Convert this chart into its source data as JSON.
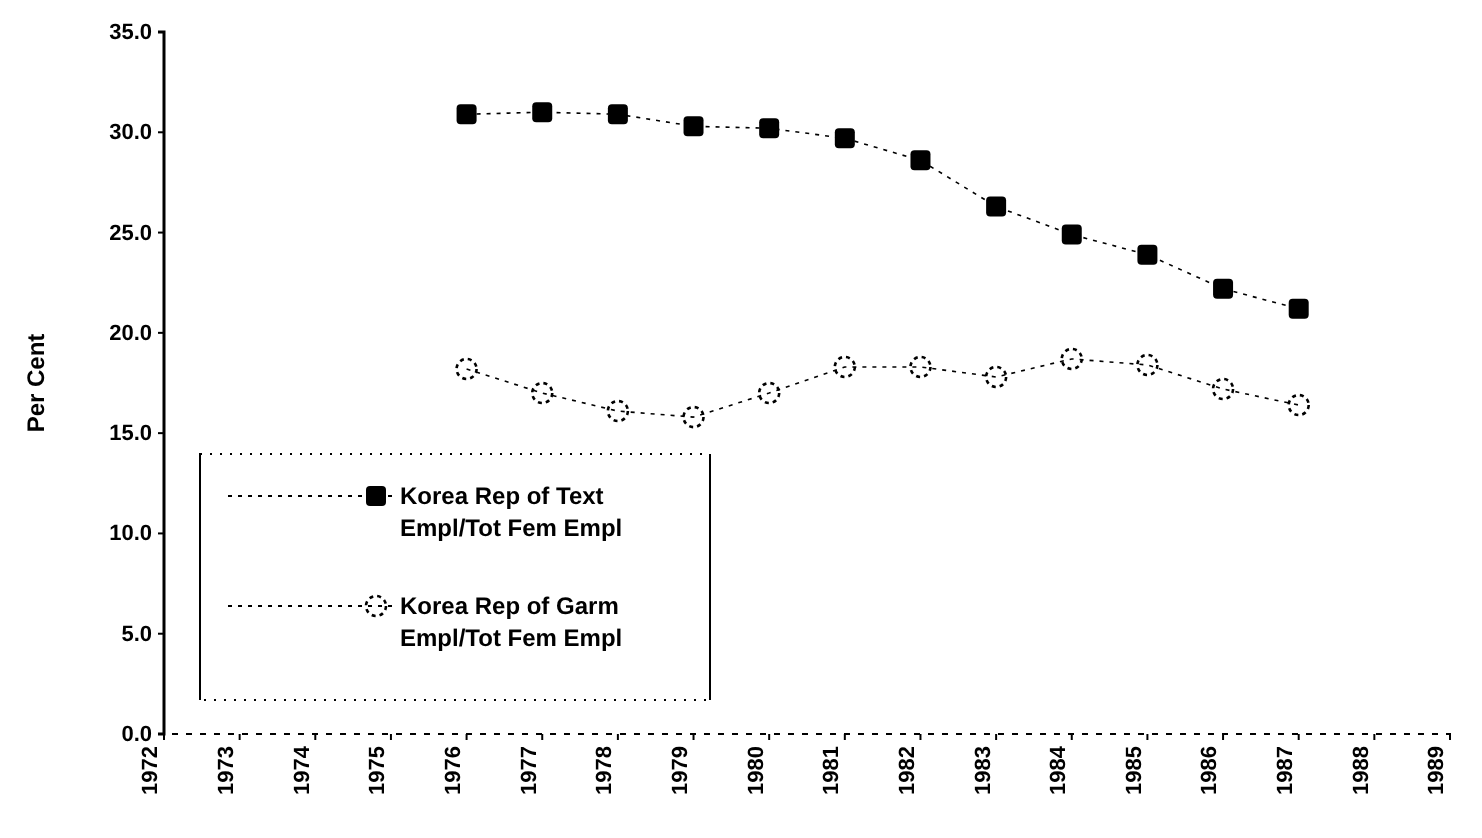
{
  "chart_data": {
    "type": "line",
    "ylabel": "Per Cent",
    "categories": [
      "1972",
      "1973",
      "1974",
      "1975",
      "1976",
      "1977",
      "1978",
      "1979",
      "1980",
      "1981",
      "1982",
      "1983",
      "1984",
      "1985",
      "1986",
      "1987",
      "1988",
      "1989"
    ],
    "series": [
      {
        "name": "Korea Rep of Text Empl/Tot Fem Empl",
        "color": "#000000",
        "marker": "square",
        "values": [
          null,
          null,
          null,
          null,
          30.9,
          31.0,
          30.9,
          30.3,
          30.2,
          29.7,
          28.6,
          26.3,
          24.9,
          23.9,
          22.2,
          21.2,
          null,
          null
        ]
      },
      {
        "name": "Korea Rep of Garm Empl/Tot Fem Empl",
        "color": "#000000",
        "marker": "circle",
        "values": [
          null,
          null,
          null,
          null,
          18.2,
          17.0,
          16.1,
          15.8,
          17.0,
          18.3,
          18.3,
          17.8,
          18.7,
          18.4,
          17.2,
          16.4,
          null,
          null
        ]
      }
    ],
    "ylim": [
      0,
      35
    ],
    "yticks": [
      {
        "value": 0,
        "label": "0.0"
      },
      {
        "value": 5,
        "label": "5.0"
      },
      {
        "value": 10,
        "label": "10.0"
      },
      {
        "value": 15,
        "label": "15.0"
      },
      {
        "value": 20,
        "label": "20.0"
      },
      {
        "value": 25,
        "label": "25.0"
      },
      {
        "value": 30,
        "label": "30.0"
      },
      {
        "value": 35,
        "label": "35.0"
      }
    ],
    "line_style": "dotted",
    "legend": "left",
    "grid": false
  }
}
